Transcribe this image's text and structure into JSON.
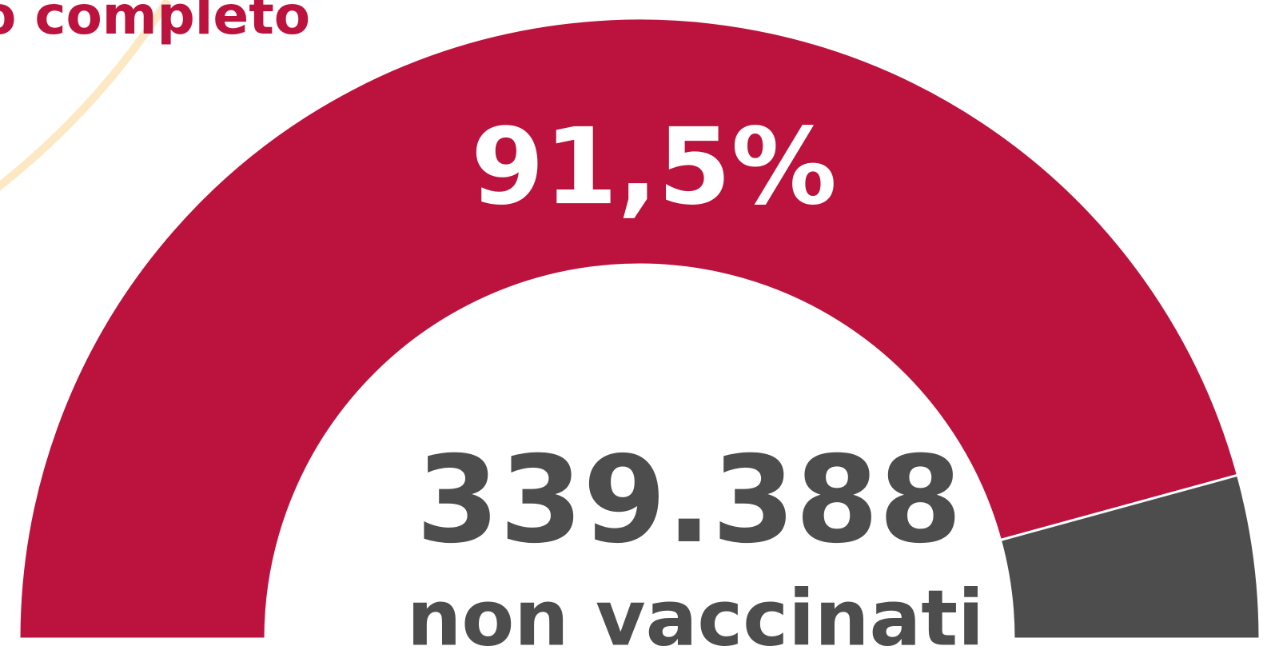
{
  "chart_data": {
    "type": "gauge",
    "title": "o completo",
    "series": [
      {
        "name": null,
        "color": "#bb133e",
        "values": [
          91.5,
          8.5
        ],
        "value_labels": [
          "91,5%",
          null
        ]
      }
    ],
    "colors": [
      "#bb133e",
      "#4d4d4d"
    ],
    "annotations": [
      "339.388",
      "non vaccinati"
    ]
  }
}
